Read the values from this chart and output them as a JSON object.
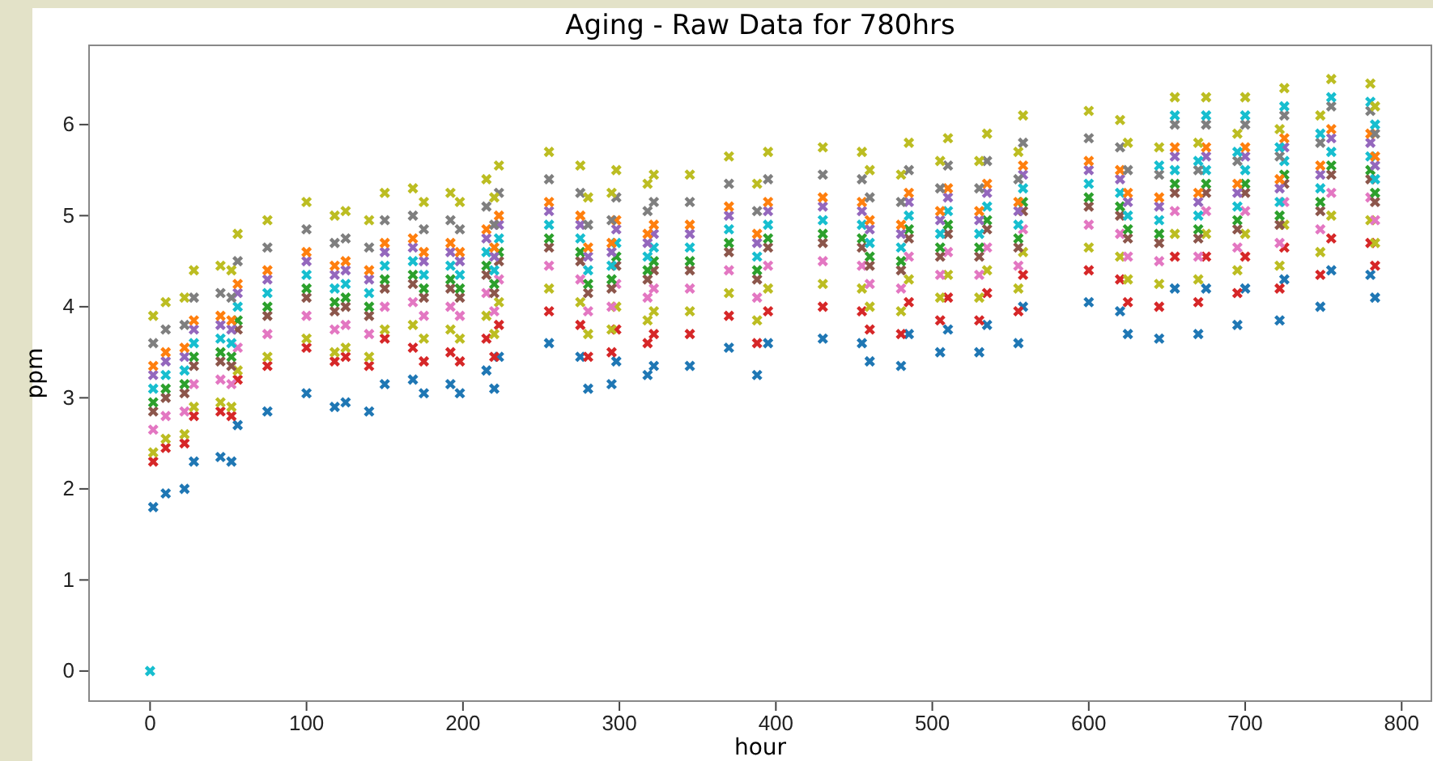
{
  "chart_data": {
    "type": "scatter",
    "title": "Aging - Raw Data for 780hrs",
    "xlabel": "hour",
    "ylabel": "ppm",
    "marker": "cross",
    "grid": false,
    "xlim": [
      -39,
      819
    ],
    "xticks": [
      0,
      100,
      200,
      300,
      400,
      500,
      600,
      700,
      800
    ],
    "ylim": [
      -0.33,
      6.87
    ],
    "yticks": [
      0,
      1,
      2,
      3,
      4,
      5,
      6
    ],
    "x": [
      0,
      2,
      10,
      22,
      28,
      45,
      52,
      56,
      75,
      100,
      118,
      125,
      140,
      150,
      168,
      175,
      192,
      198,
      215,
      220,
      223,
      255,
      275,
      280,
      295,
      298,
      318,
      322,
      345,
      370,
      388,
      395,
      430,
      455,
      460,
      480,
      485,
      505,
      510,
      530,
      535,
      555,
      558,
      600,
      620,
      625,
      645,
      655,
      670,
      675,
      695,
      700,
      722,
      725,
      748,
      755,
      780,
      783
    ],
    "series": [
      {
        "color": "#1f77b4",
        "values": [
          null,
          1.8,
          1.95,
          2.0,
          2.3,
          2.35,
          2.3,
          2.7,
          2.85,
          3.05,
          2.9,
          2.95,
          2.85,
          3.15,
          3.2,
          3.05,
          3.15,
          3.05,
          3.3,
          3.1,
          3.45,
          3.6,
          3.45,
          3.1,
          3.15,
          3.4,
          3.25,
          3.35,
          3.35,
          3.55,
          3.25,
          3.6,
          3.65,
          3.6,
          3.4,
          3.35,
          3.7,
          3.5,
          3.75,
          3.5,
          3.8,
          3.6,
          4.0,
          4.05,
          3.95,
          3.7,
          3.65,
          4.2,
          3.7,
          4.2,
          3.8,
          4.2,
          3.85,
          4.3,
          4.0,
          4.4,
          4.35,
          4.1
        ]
      },
      {
        "color": "#d62728",
        "values": [
          null,
          2.3,
          2.45,
          2.5,
          2.8,
          2.85,
          2.8,
          3.2,
          3.35,
          3.55,
          3.4,
          3.45,
          3.35,
          3.65,
          3.55,
          3.4,
          3.5,
          3.4,
          3.65,
          3.45,
          3.8,
          3.95,
          3.8,
          3.45,
          3.5,
          3.75,
          3.6,
          3.7,
          3.7,
          3.9,
          3.6,
          3.95,
          4.0,
          3.95,
          3.75,
          3.7,
          4.05,
          3.85,
          4.1,
          3.85,
          4.15,
          3.95,
          4.35,
          4.4,
          4.3,
          4.05,
          4.0,
          4.55,
          4.05,
          4.55,
          4.15,
          4.55,
          4.2,
          4.65,
          4.35,
          4.75,
          4.7,
          4.45
        ]
      },
      {
        "color": "#bcbd22",
        "values": [
          null,
          2.4,
          2.55,
          2.6,
          2.9,
          2.95,
          2.9,
          3.3,
          3.45,
          3.65,
          3.5,
          3.55,
          3.45,
          3.75,
          3.8,
          3.65,
          3.75,
          3.65,
          3.9,
          3.7,
          4.05,
          4.2,
          4.05,
          3.7,
          3.75,
          4.0,
          3.85,
          3.95,
          3.95,
          4.15,
          3.85,
          4.2,
          4.25,
          4.2,
          4.0,
          3.95,
          4.3,
          4.1,
          4.35,
          4.1,
          4.4,
          4.2,
          4.6,
          4.65,
          4.55,
          4.3,
          4.25,
          4.8,
          4.3,
          4.8,
          4.4,
          4.8,
          4.45,
          4.9,
          4.6,
          5.0,
          4.95,
          4.7
        ]
      },
      {
        "color": "#e377c2",
        "values": [
          null,
          2.65,
          2.8,
          2.85,
          3.15,
          3.2,
          3.15,
          3.55,
          3.7,
          3.9,
          3.75,
          3.8,
          3.7,
          4.0,
          4.05,
          3.9,
          4.0,
          3.9,
          4.15,
          3.95,
          4.3,
          4.45,
          4.3,
          3.95,
          4.0,
          4.25,
          4.1,
          4.2,
          4.2,
          4.4,
          4.1,
          4.45,
          4.5,
          4.45,
          4.25,
          4.2,
          4.55,
          4.35,
          4.6,
          4.35,
          4.65,
          4.45,
          4.85,
          4.9,
          4.8,
          4.55,
          4.5,
          5.05,
          4.55,
          5.05,
          4.65,
          5.05,
          4.7,
          5.15,
          4.85,
          5.25,
          5.2,
          4.95
        ]
      },
      {
        "color": "#8c564b",
        "values": [
          null,
          2.85,
          3.0,
          3.05,
          3.35,
          3.4,
          3.35,
          3.75,
          3.9,
          4.1,
          3.95,
          4.0,
          3.9,
          4.2,
          4.25,
          4.1,
          4.2,
          4.1,
          4.35,
          4.15,
          4.5,
          4.65,
          4.5,
          4.15,
          4.2,
          4.45,
          4.3,
          4.4,
          4.4,
          4.6,
          4.3,
          4.65,
          4.7,
          4.65,
          4.45,
          4.4,
          4.75,
          4.55,
          4.8,
          4.55,
          4.85,
          4.65,
          5.05,
          5.1,
          5.0,
          4.75,
          4.7,
          5.25,
          4.75,
          5.25,
          4.85,
          5.25,
          4.9,
          5.35,
          5.05,
          5.45,
          5.4,
          5.15
        ]
      },
      {
        "color": "#2ca02c",
        "values": [
          null,
          2.95,
          3.1,
          3.15,
          3.45,
          3.5,
          3.45,
          3.85,
          4.0,
          4.2,
          4.05,
          4.1,
          4.0,
          4.3,
          4.35,
          4.2,
          4.3,
          4.2,
          4.45,
          4.25,
          4.6,
          4.75,
          4.6,
          4.25,
          4.3,
          4.55,
          4.4,
          4.5,
          4.5,
          4.7,
          4.4,
          4.75,
          4.8,
          4.75,
          4.55,
          4.5,
          4.85,
          4.65,
          4.9,
          4.65,
          4.95,
          4.75,
          5.15,
          5.2,
          5.1,
          4.85,
          4.8,
          5.35,
          4.85,
          5.35,
          4.95,
          5.35,
          5.0,
          5.45,
          5.15,
          5.55,
          5.5,
          5.25
        ]
      },
      {
        "color": "#17becf",
        "values": [
          0,
          3.1,
          3.25,
          3.3,
          3.6,
          3.65,
          3.6,
          4.0,
          4.15,
          4.35,
          4.2,
          4.25,
          4.15,
          4.45,
          4.5,
          4.35,
          4.45,
          4.35,
          4.6,
          4.4,
          4.75,
          4.9,
          4.75,
          4.4,
          4.45,
          4.7,
          4.55,
          4.65,
          4.65,
          4.85,
          4.55,
          4.9,
          4.95,
          4.9,
          4.7,
          4.65,
          5.0,
          4.8,
          5.05,
          4.8,
          5.1,
          4.9,
          5.3,
          5.35,
          5.25,
          5.0,
          4.95,
          5.5,
          5.0,
          5.5,
          5.1,
          5.5,
          5.15,
          5.6,
          5.3,
          5.7,
          5.65,
          5.4
        ]
      },
      {
        "color": "#9467bd",
        "values": [
          null,
          3.25,
          3.4,
          3.45,
          3.75,
          3.8,
          3.75,
          4.15,
          4.3,
          4.5,
          4.35,
          4.4,
          4.3,
          4.6,
          4.65,
          4.5,
          4.6,
          4.5,
          4.75,
          4.55,
          4.9,
          5.05,
          4.9,
          4.55,
          4.6,
          4.85,
          4.7,
          4.8,
          4.8,
          5.0,
          4.7,
          5.05,
          5.1,
          5.05,
          4.85,
          4.8,
          5.15,
          4.95,
          5.2,
          4.95,
          5.25,
          5.05,
          5.45,
          5.5,
          5.4,
          5.15,
          5.1,
          5.65,
          5.15,
          5.65,
          5.25,
          5.65,
          5.3,
          5.75,
          5.45,
          5.85,
          5.8,
          5.55
        ]
      },
      {
        "color": "#ff7f0e",
        "values": [
          null,
          3.35,
          3.5,
          3.55,
          3.85,
          3.9,
          3.85,
          4.25,
          4.4,
          4.6,
          4.45,
          4.5,
          4.4,
          4.7,
          4.75,
          4.6,
          4.7,
          4.6,
          4.85,
          4.65,
          5.0,
          5.15,
          5.0,
          4.65,
          4.7,
          4.95,
          4.8,
          4.9,
          4.9,
          5.1,
          4.8,
          5.15,
          5.2,
          5.15,
          4.95,
          4.9,
          5.25,
          5.05,
          5.3,
          5.05,
          5.35,
          5.15,
          5.55,
          5.6,
          5.5,
          5.25,
          5.2,
          5.75,
          5.25,
          5.75,
          5.35,
          5.75,
          5.4,
          5.85,
          5.55,
          5.95,
          5.9,
          5.65
        ]
      },
      {
        "color": "#7f7f7f",
        "values": [
          null,
          3.6,
          3.75,
          3.8,
          4.1,
          4.15,
          4.1,
          4.5,
          4.65,
          4.85,
          4.7,
          4.75,
          4.65,
          4.95,
          5.0,
          4.85,
          4.95,
          4.85,
          5.1,
          4.9,
          5.25,
          5.4,
          5.25,
          4.9,
          4.95,
          5.2,
          5.05,
          5.15,
          5.15,
          5.35,
          5.05,
          5.4,
          5.45,
          5.4,
          5.2,
          5.15,
          5.5,
          5.3,
          5.55,
          5.3,
          5.6,
          5.4,
          5.8,
          5.85,
          5.75,
          5.5,
          5.45,
          6.0,
          5.5,
          6.0,
          5.6,
          6.0,
          5.65,
          6.1,
          5.8,
          6.2,
          6.15,
          5.9
        ]
      },
      {
        "color": "#17becf",
        "values": [
          null,
          null,
          null,
          null,
          null,
          null,
          null,
          null,
          null,
          null,
          null,
          null,
          null,
          null,
          null,
          null,
          null,
          null,
          null,
          null,
          null,
          null,
          null,
          null,
          null,
          null,
          null,
          null,
          null,
          null,
          null,
          null,
          null,
          null,
          null,
          null,
          null,
          null,
          null,
          null,
          null,
          null,
          null,
          null,
          null,
          null,
          5.55,
          6.1,
          5.6,
          6.1,
          5.7,
          6.1,
          5.75,
          6.2,
          5.9,
          6.3,
          6.25,
          6.0
        ]
      },
      {
        "color": "#bcbd22",
        "values": [
          null,
          3.9,
          4.05,
          4.1,
          4.4,
          4.45,
          4.4,
          4.8,
          4.95,
          5.15,
          5.0,
          5.05,
          4.95,
          5.25,
          5.3,
          5.15,
          5.25,
          5.15,
          5.4,
          5.2,
          5.55,
          5.7,
          5.55,
          5.2,
          5.25,
          5.5,
          5.35,
          5.45,
          5.45,
          5.65,
          5.35,
          5.7,
          5.75,
          5.7,
          5.5,
          5.45,
          5.8,
          5.6,
          5.85,
          5.6,
          5.9,
          5.7,
          6.1,
          6.15,
          6.05,
          5.8,
          5.75,
          6.3,
          5.8,
          6.3,
          5.9,
          6.3,
          5.95,
          6.4,
          6.1,
          6.5,
          6.45,
          6.2
        ]
      }
    ]
  }
}
